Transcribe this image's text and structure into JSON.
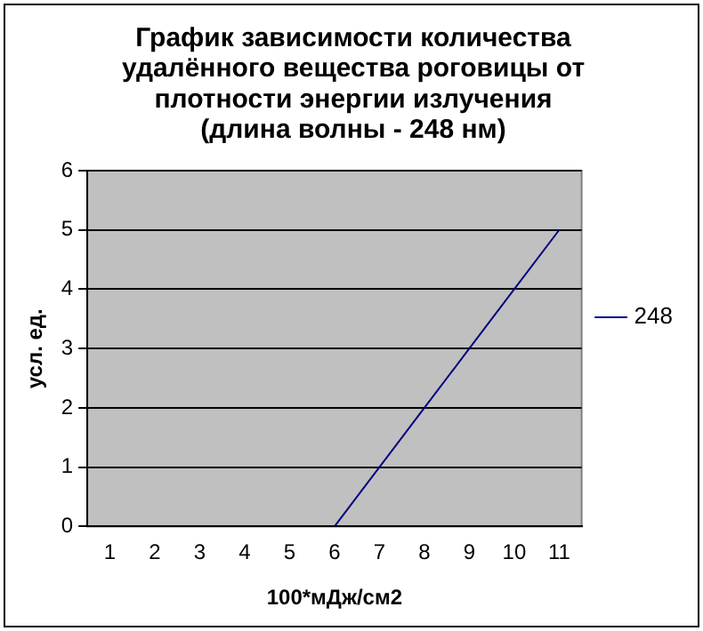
{
  "chart_data": {
    "type": "line",
    "title": "График зависимости количества\nудалённого вещества роговицы от\nплотности энергии излучения\n(длина волны - 248 нм)",
    "xlabel": "100*мДж/см2",
    "ylabel": "усл. ед.",
    "categories": [
      "1",
      "2",
      "3",
      "4",
      "5",
      "6",
      "7",
      "8",
      "9",
      "10",
      "11"
    ],
    "series": [
      {
        "name": "248",
        "color": "#000080",
        "values": [
          null,
          null,
          null,
          null,
          null,
          0,
          1,
          2,
          3,
          4,
          5
        ]
      }
    ],
    "ylim": [
      0,
      6
    ],
    "yticks": [
      0,
      1,
      2,
      3,
      4,
      5,
      6
    ],
    "grid": "y",
    "legend": "right",
    "marker": "none"
  }
}
